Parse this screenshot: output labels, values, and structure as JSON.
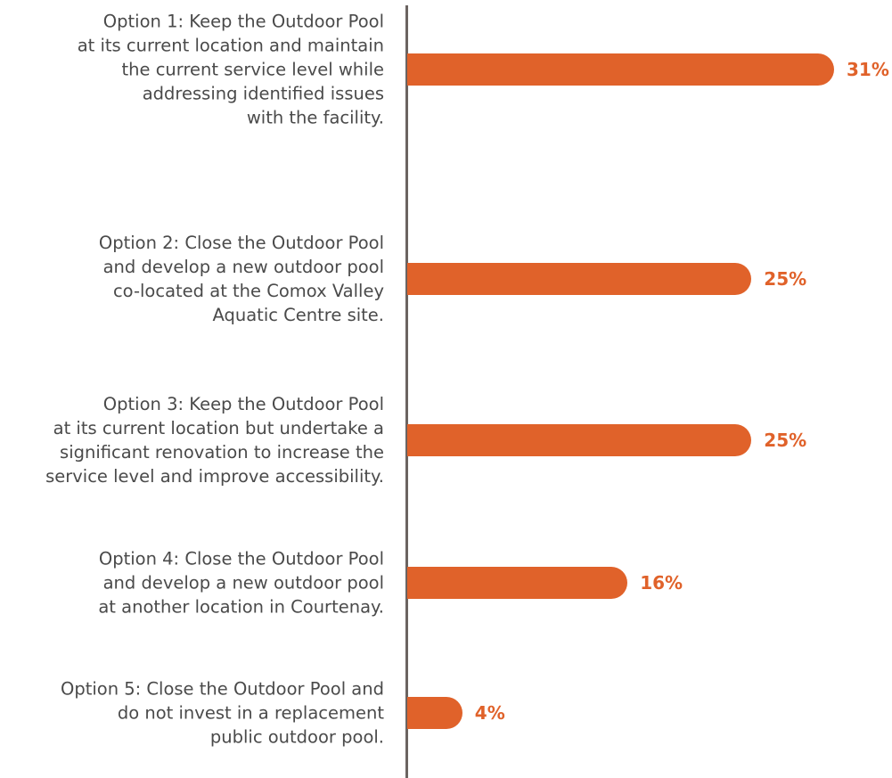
{
  "chart_data": {
    "type": "bar",
    "orientation": "horizontal",
    "categories": [
      "Option 1: Keep the Outdoor Pool\nat its current location and maintain\nthe current service level while\naddressing identified issues\nwith the facility.",
      "Option 2: Close the Outdoor Pool\nand develop a new outdoor pool\nco-located at the Comox Valley\nAquatic Centre site.",
      "Option 3: Keep the Outdoor Pool\nat its current location but undertake a\nsignificant renovation to increase the\nservice level and improve accessibility.",
      "Option 4: Close the Outdoor Pool\nand develop a new outdoor pool\nat another location in Courtenay.",
      "Option 5: Close the Outdoor Pool and\ndo not invest in a replacement\npublic outdoor pool."
    ],
    "values": [
      31,
      25,
      25,
      16,
      4
    ],
    "value_labels": [
      "31%",
      "25%",
      "25%",
      "16%",
      "4%"
    ],
    "color": "#e0622a"
  }
}
